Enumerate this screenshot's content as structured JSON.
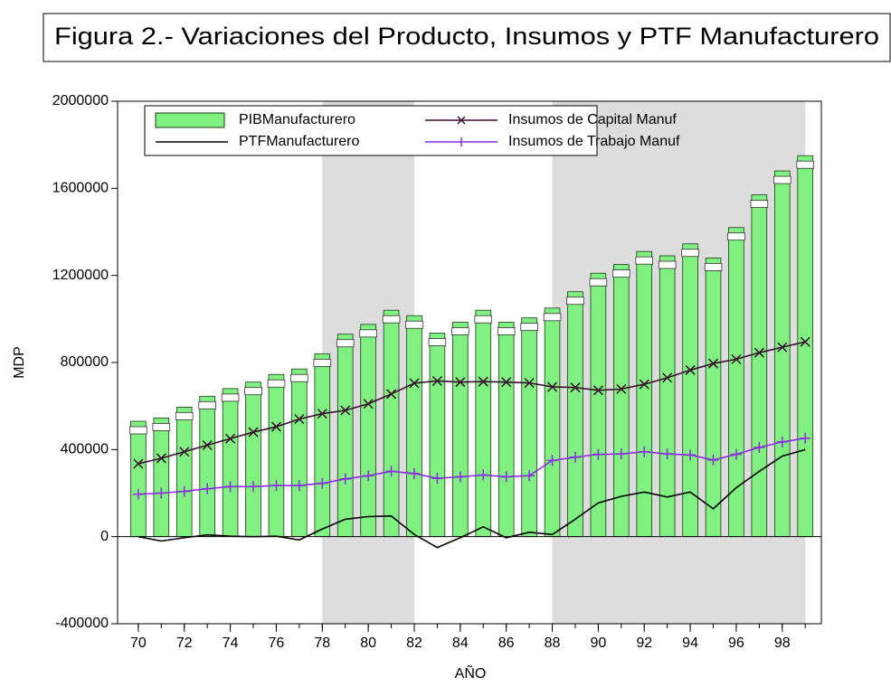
{
  "chart_data": {
    "type": "bar",
    "title": "Figura 2.- Variaciones del Producto, Insumos y PTF Manufacturero",
    "x_label": "AÑO",
    "y_label": "MDP",
    "x": [
      70,
      71,
      72,
      73,
      74,
      75,
      76,
      77,
      78,
      79,
      80,
      81,
      82,
      83,
      84,
      85,
      86,
      87,
      88,
      89,
      90,
      91,
      92,
      93,
      94,
      95,
      96,
      97,
      98,
      99
    ],
    "series": [
      {
        "name": "PIBManufacturero",
        "type": "bar",
        "color": "#80f080",
        "values": [
          530000,
          545000,
          595000,
          645000,
          680000,
          710000,
          745000,
          770000,
          840000,
          930000,
          975000,
          1040000,
          1015000,
          935000,
          985000,
          1040000,
          985000,
          1005000,
          1050000,
          1125000,
          1210000,
          1250000,
          1310000,
          1290000,
          1345000,
          1280000,
          1420000,
          1570000,
          1680000,
          1750000
        ]
      },
      {
        "name": "Insumos de Capital Manuf",
        "type": "line",
        "marker": "x",
        "color": "#3a0f2e",
        "values": [
          335000,
          360000,
          390000,
          420000,
          450000,
          480000,
          505000,
          540000,
          565000,
          580000,
          610000,
          655000,
          705000,
          715000,
          710000,
          712000,
          710000,
          706000,
          688000,
          685000,
          672000,
          678000,
          700000,
          730000,
          765000,
          795000,
          815000,
          845000,
          870000,
          895000
        ]
      },
      {
        "name": "PTFManufacturero",
        "type": "line",
        "marker": null,
        "color": "#000000",
        "values": [
          0,
          -20000,
          -5000,
          8000,
          2000,
          0,
          2000,
          -15000,
          35000,
          80000,
          92000,
          95000,
          10000,
          -50000,
          -5000,
          45000,
          -5000,
          20000,
          10000,
          80000,
          155000,
          185000,
          205000,
          182000,
          205000,
          128000,
          225000,
          300000,
          370000,
          400000
        ]
      },
      {
        "name": "Insumos de Trabajo Manuf",
        "type": "line",
        "marker": "+",
        "color": "#8a2be2",
        "values": [
          195000,
          200000,
          208000,
          220000,
          230000,
          230000,
          235000,
          235000,
          245000,
          265000,
          280000,
          300000,
          290000,
          268000,
          275000,
          283000,
          275000,
          280000,
          350000,
          365000,
          378000,
          380000,
          390000,
          380000,
          375000,
          352000,
          378000,
          410000,
          435000,
          452000
        ]
      }
    ],
    "shaded": [
      [
        78,
        82
      ],
      [
        88,
        99
      ]
    ],
    "shade_color": "#dddddd",
    "xlim": [
      69.1,
      99.7
    ],
    "xticks": [
      70,
      72,
      74,
      76,
      78,
      80,
      82,
      84,
      86,
      88,
      90,
      92,
      94,
      96,
      98
    ],
    "ylim": [
      -400000,
      2000000
    ],
    "yticks": [
      -400000,
      0,
      400000,
      800000,
      1200000,
      1600000,
      2000000
    ],
    "grid": false
  }
}
